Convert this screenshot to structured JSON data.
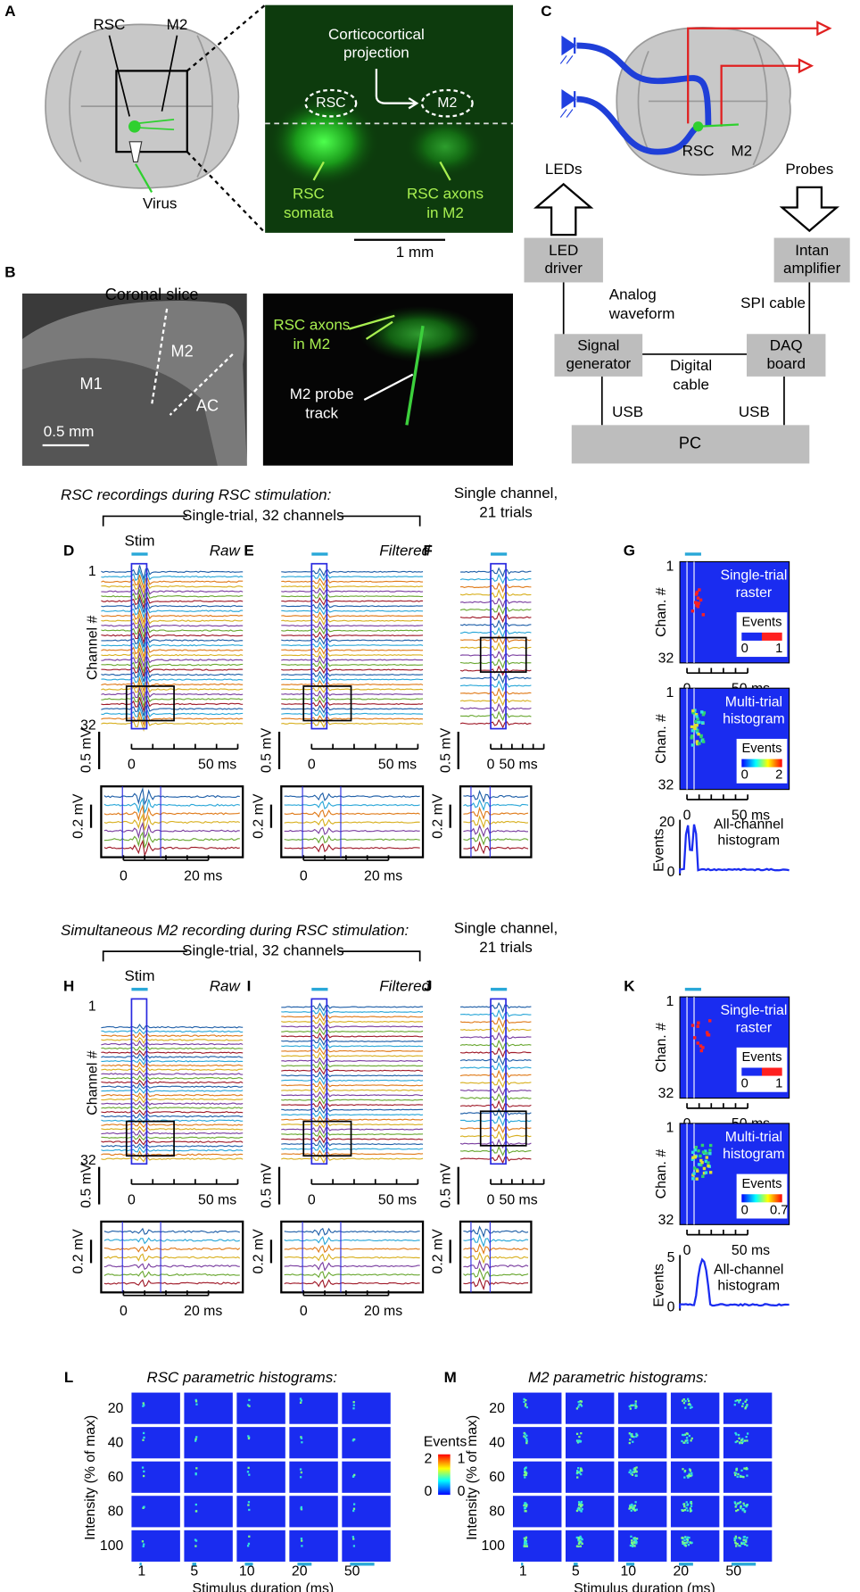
{
  "panel_a": {
    "letter": "A",
    "rsc": "RSC",
    "m2": "M2",
    "virus": "Virus",
    "projection": [
      "Corticocortical",
      "projection"
    ],
    "rsc_roi": "RSC",
    "m2_roi": "M2",
    "somata": [
      "RSC",
      "somata"
    ],
    "axons": [
      "RSC axons",
      "in M2"
    ],
    "scale": "1 mm"
  },
  "panel_b": {
    "letter": "B",
    "title": "Coronal slice",
    "m1": "M1",
    "m2": "M2",
    "ac": "AC",
    "scale": "0.5 mm",
    "axons": [
      "RSC axons",
      "in M2"
    ],
    "probe": [
      "M2 probe",
      "track"
    ]
  },
  "panel_c": {
    "letter": "C",
    "leds": "LEDs",
    "probes": "Probes",
    "led_driver": [
      "LED",
      "driver"
    ],
    "amplifier": [
      "Intan",
      "amplifier"
    ],
    "analog": [
      "Analog",
      "waveform"
    ],
    "spi": "SPI cable",
    "signal_gen": [
      "Signal",
      "generator"
    ],
    "daq": [
      "DAQ",
      "board"
    ],
    "digital": [
      "Digital",
      "cable"
    ],
    "usb_left": "USB",
    "usb_right": "USB",
    "pc": "PC",
    "rsc": "RSC",
    "m2": "M2"
  },
  "rows": [
    {
      "title": "RSC recordings during RSC stimulation:",
      "bracket": "Single-trial, 32 channels",
      "single": [
        "Single channel,",
        "21 trials"
      ],
      "raw": {
        "letter": "D",
        "stim": "Stim",
        "mode": "Raw",
        "ch_first": "1",
        "ch_last": "32",
        "ch_label": "Channel #",
        "scale_v": "0.5 mV",
        "x0": "0",
        "x1": "50 ms",
        "zoom_v": "0.2 mV",
        "zx0": "0",
        "zx1": "20 ms"
      },
      "filtered": {
        "letter": "E",
        "mode": "Filtered",
        "scale_v": "0.5 mV",
        "x0": "0",
        "x1": "50 ms",
        "zoom_v": "0.2 mV",
        "zx0": "0",
        "zx1": "20 ms"
      },
      "single_ch": {
        "letter": "F",
        "scale_v": "0.5 mV",
        "x0": "0",
        "x1": "50 ms",
        "zoom_v": "0.2 mV"
      },
      "summary": {
        "letter": "G",
        "raster": [
          "Single-trial",
          "raster"
        ],
        "hist": [
          "Multi-trial",
          "histogram"
        ],
        "chan": "Chan. #",
        "c1": "1",
        "c32": "32",
        "events": "Events",
        "r0": "0",
        "r1": "1",
        "h0": "0",
        "h1": "2",
        "x0": "0",
        "x1": "50 ms",
        "all": [
          "All-channel",
          "histogram"
        ],
        "ymax": "20",
        "ymin": "0"
      }
    },
    {
      "title": "Simultaneous M2 recording during RSC stimulation:",
      "bracket": "Single-trial, 32 channels",
      "single": [
        "Single channel,",
        "21 trials"
      ],
      "raw": {
        "letter": "H",
        "stim": "Stim",
        "mode": "Raw",
        "ch_first": "1",
        "ch_last": "32",
        "ch_label": "Channel #",
        "scale_v": "0.5 mV",
        "x0": "0",
        "x1": "50 ms",
        "zoom_v": "0.2 mV",
        "zx0": "0",
        "zx1": "20 ms"
      },
      "filtered": {
        "letter": "I",
        "mode": "Filtered",
        "scale_v": "0.5 mV",
        "x0": "0",
        "x1": "50 ms",
        "zoom_v": "0.2 mV",
        "zx0": "0",
        "zx1": "20 ms"
      },
      "single_ch": {
        "letter": "J",
        "scale_v": "0.5 mV",
        "x0": "0",
        "x1": "50 ms",
        "zoom_v": "0.2 mV"
      },
      "summary": {
        "letter": "K",
        "raster": [
          "Single-trial",
          "raster"
        ],
        "hist": [
          "Multi-trial",
          "histogram"
        ],
        "chan": "Chan. #",
        "c1": "1",
        "c32": "32",
        "events": "Events",
        "r0": "0",
        "r1": "1",
        "h0": "0",
        "h1": "0.7",
        "x0": "0",
        "x1": "50 ms",
        "all": [
          "All-channel",
          "histogram"
        ],
        "ymax": "5",
        "ymin": "0"
      }
    }
  ],
  "panel_l": {
    "letter": "L",
    "title": "RSC parametric histograms:"
  },
  "panel_m": {
    "letter": "M",
    "title": "M2 parametric histograms:"
  },
  "param": {
    "intensity": "Intensity (% of max)",
    "duration": "Stimulus duration (ms)",
    "levels": [
      "20",
      "40",
      "60",
      "80",
      "100"
    ],
    "durations": [
      "1",
      "5",
      "10",
      "20",
      "50"
    ],
    "cbar": {
      "label": "Events",
      "left": [
        "2",
        "0"
      ],
      "right": [
        "1",
        "0"
      ]
    }
  }
}
